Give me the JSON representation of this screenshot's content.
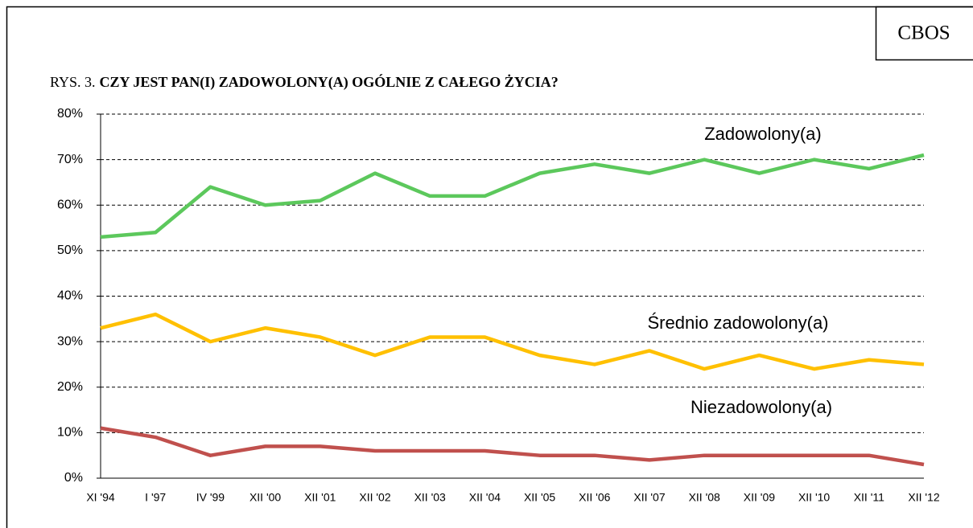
{
  "chart_data": {
    "type": "line",
    "source": "CBOS",
    "figure_label": "RYS. 3.",
    "title": "CZY JEST PAN(I) ZADOWOLONY(A) OGÓLNIE Z  CAŁEGO ŻYCIA?",
    "categories": [
      "XI '94",
      "I '97",
      "IV '99",
      "XII '00",
      "XII '01",
      "XII '02",
      "XII '03",
      "XII '04",
      "XII '05",
      "XII '06",
      "XII '07",
      "XII '08",
      "XII '09",
      "XII '10",
      "XII '11",
      "XII '12"
    ],
    "series": [
      {
        "name": "Zadowolony(a)",
        "color": "#5cc85c",
        "values": [
          53,
          54,
          64,
          60,
          61,
          67,
          62,
          62,
          67,
          69,
          67,
          70,
          67,
          70,
          68,
          71
        ]
      },
      {
        "name": "Średnio zadowolony(a)",
        "color": "#ffc000",
        "values": [
          33,
          36,
          30,
          33,
          31,
          27,
          31,
          31,
          27,
          25,
          28,
          24,
          27,
          24,
          26,
          25
        ]
      },
      {
        "name": "Niezadowolony(a)",
        "color": "#c0504d",
        "values": [
          11,
          9,
          5,
          7,
          7,
          6,
          6,
          6,
          5,
          5,
          4,
          5,
          5,
          5,
          5,
          3
        ]
      }
    ],
    "ylim": [
      0,
      80
    ],
    "yticks": [
      {
        "value": 0,
        "label": "0%"
      },
      {
        "value": 10,
        "label": "10%"
      },
      {
        "value": 20,
        "label": "20%"
      },
      {
        "value": 30,
        "label": "30%"
      },
      {
        "value": 40,
        "label": "40%"
      },
      {
        "value": 50,
        "label": "50%"
      },
      {
        "value": 60,
        "label": "60%"
      },
      {
        "value": 70,
        "label": "70%"
      },
      {
        "value": 80,
        "label": "80%"
      }
    ],
    "grid": true
  }
}
